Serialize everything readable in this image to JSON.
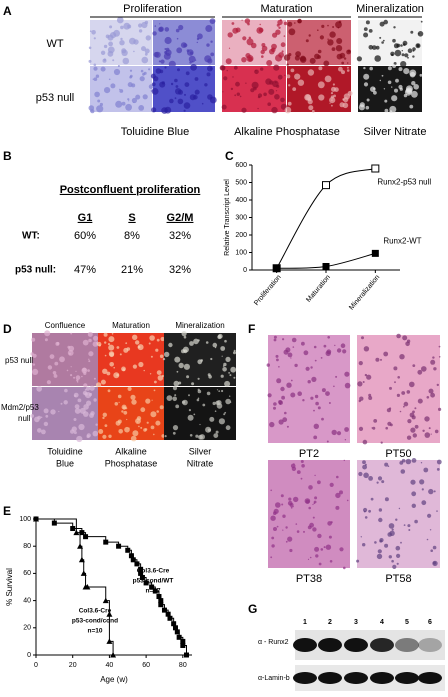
{
  "panel_labels": [
    "A",
    "B",
    "C",
    "D",
    "E",
    "F",
    "G"
  ],
  "panel_a": {
    "column_headers": [
      "Proliferation",
      "Maturation",
      "Mineralization"
    ],
    "row_labels": [
      "WT",
      "p53 null"
    ],
    "stain_labels": [
      "Toluidine Blue",
      "Alkaline Phosphatase",
      "Silver Nitrate"
    ]
  },
  "panel_b": {
    "title": "Postconfluent proliferation",
    "columns": [
      "G1",
      "S",
      "G2/M"
    ],
    "rows": [
      {
        "label": "WT:",
        "cells": [
          "60%",
          "8%",
          "32%"
        ]
      },
      {
        "label": "p53 null:",
        "cells": [
          "47%",
          "21%",
          "32%"
        ]
      }
    ]
  },
  "chart_data": [
    {
      "type": "line",
      "ylabel": "Relative Transcript Level",
      "categories": [
        "Proliferation",
        "Maturation",
        "Mineralization"
      ],
      "ylim": [
        0,
        600
      ],
      "yticks": [
        0,
        100,
        200,
        300,
        400,
        500,
        600
      ],
      "series": [
        {
          "name": "Runx2-p53 null",
          "color": "#000000",
          "marker": "open-square",
          "values": [
            10,
            485,
            580
          ]
        },
        {
          "name": "Runx2-WT",
          "color": "#000000",
          "marker": "filled-square",
          "values": [
            10,
            20,
            95
          ]
        }
      ]
    },
    {
      "type": "step",
      "xlabel": "Age (w)",
      "ylabel": "% Survival",
      "xlim": [
        0,
        85
      ],
      "ylim": [
        0,
        100
      ],
      "xticks": [
        0,
        20,
        40,
        60,
        80
      ],
      "yticks": [
        0,
        20,
        40,
        60,
        80,
        100
      ],
      "series": [
        {
          "label": [
            "Col3.6-Cre",
            "p53-cond/WT",
            "n=27"
          ],
          "marker": "square",
          "color": "#000000",
          "x": [
            0,
            10,
            20,
            25,
            27,
            38,
            45,
            50,
            52,
            53,
            55,
            57,
            57,
            58,
            60,
            63,
            65,
            67,
            68,
            68,
            70,
            72,
            73,
            75,
            76,
            77,
            78,
            80,
            80,
            82
          ],
          "values": [
            100,
            97,
            93,
            90,
            87,
            83,
            80,
            77,
            73,
            70,
            67,
            63,
            60,
            57,
            53,
            50,
            47,
            43,
            40,
            37,
            33,
            30,
            27,
            23,
            20,
            17,
            13,
            10,
            7,
            0
          ]
        },
        {
          "label": [
            "Col3.6-Cre",
            "p53-cond/cond",
            "n=10"
          ],
          "marker": "triangle",
          "color": "#000000",
          "x": [
            0,
            22,
            24,
            25,
            26,
            27,
            28,
            38,
            40,
            40,
            42
          ],
          "values": [
            100,
            90,
            80,
            70,
            60,
            50,
            50,
            40,
            30,
            10,
            0
          ]
        }
      ]
    }
  ],
  "panel_d": {
    "column_headers": [
      "Confluence",
      "Maturation",
      "Mineralization"
    ],
    "row_labels": [
      [
        "p53 null"
      ],
      [
        "Mdm2/p53",
        "null"
      ]
    ],
    "stain_labels": [
      [
        "Toluidine",
        "Blue"
      ],
      [
        "Alkaline",
        "Phosphatase"
      ],
      [
        "Silver",
        "Nitrate"
      ]
    ]
  },
  "panel_f": {
    "labels": [
      "PT2",
      "PT50",
      "PT38",
      "PT58"
    ]
  },
  "panel_g": {
    "lanes": [
      "1",
      "2",
      "3",
      "4",
      "5",
      "6"
    ],
    "rows": [
      "α - Runx2",
      "α-Lamin-b"
    ]
  }
}
